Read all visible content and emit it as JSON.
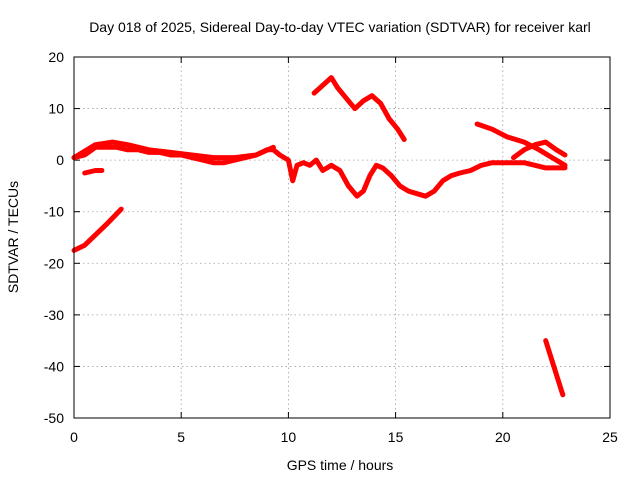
{
  "chart_data": {
    "type": "scatter",
    "title": "Day 018 of 2025, Sidereal Day-to-day VTEC variation (SDTVAR) for receiver karl",
    "xlabel": "GPS time / hours",
    "ylabel": "SDTVAR / TECUs",
    "xlim": [
      0,
      25
    ],
    "ylim": [
      -50,
      20
    ],
    "xticks": [
      "0",
      "5",
      "10",
      "15",
      "20",
      "25"
    ],
    "yticks": [
      "20",
      "10",
      "0",
      "-10",
      "-20",
      "-30",
      "-40",
      "-50"
    ],
    "grid": true,
    "marker_color": "#ff0000",
    "series": [
      {
        "name": "main-track",
        "x": [
          0,
          0.5,
          1,
          1.5,
          2,
          2.5,
          3,
          3.5,
          4,
          4.5,
          5,
          5.5,
          6,
          6.5,
          7,
          7.5,
          8,
          8.5,
          9,
          9.3,
          9.6,
          10,
          10.2,
          10.4,
          10.7,
          11,
          11.3,
          11.6,
          12,
          12.4,
          12.8,
          13.2,
          13.5,
          13.8,
          14.1,
          14.4,
          14.8,
          15.2,
          15.6,
          16,
          16.4,
          16.8,
          17.2,
          17.6,
          18,
          18.5,
          19,
          19.5,
          20,
          20.5,
          21,
          21.5,
          22,
          22.5,
          22.9
        ],
        "y": [
          0.5,
          1,
          2.5,
          2.5,
          2.5,
          2,
          2,
          1.5,
          1.5,
          1,
          1,
          0.5,
          0,
          -0.5,
          -0.5,
          0,
          0.5,
          1,
          2,
          2,
          1,
          0,
          -4,
          -1,
          -0.5,
          -1,
          0,
          -2,
          -1,
          -2,
          -5,
          -7,
          -6,
          -3,
          -1,
          -1.5,
          -3,
          -5,
          -6,
          -6.5,
          -7,
          -6,
          -4,
          -3,
          -2.5,
          -2,
          -1,
          -0.5,
          -0.5,
          -0.5,
          -0.5,
          -1,
          -1.5,
          -1.5,
          -1.5
        ]
      },
      {
        "name": "secondary-track",
        "x": [
          0,
          1,
          1.8,
          2.5,
          3.5,
          4.5,
          5.5,
          6.5,
          7.5,
          8.5,
          9.3
        ],
        "y": [
          0.5,
          3,
          3.5,
          3,
          2,
          1.5,
          1,
          0.5,
          0.5,
          1,
          2.5
        ]
      },
      {
        "name": "short-segment",
        "x": [
          0.5,
          1,
          1.3
        ],
        "y": [
          -2.5,
          -2,
          -2
        ]
      },
      {
        "name": "rising-segment",
        "x": [
          0,
          0.5,
          1,
          1.5,
          2.2
        ],
        "y": [
          -17.5,
          -16.5,
          -14.5,
          -12.5,
          -9.5
        ]
      },
      {
        "name": "arc-segment",
        "x": [
          11.2,
          11.6,
          12,
          12.3,
          12.7,
          13.1,
          13.5,
          13.9,
          14.3,
          14.7,
          15.1,
          15.4
        ],
        "y": [
          13,
          14.5,
          16,
          14,
          12,
          10,
          11.5,
          12.5,
          11,
          8,
          6,
          4
        ]
      },
      {
        "name": "late-descending",
        "x": [
          18.8,
          19.5,
          20.2,
          21,
          21.7,
          22.3,
          22.9
        ],
        "y": [
          7,
          6,
          4.5,
          3.5,
          2,
          0.5,
          -1
        ]
      },
      {
        "name": "late-wiggle",
        "x": [
          20.5,
          21,
          21.5,
          22,
          22.5,
          22.9
        ],
        "y": [
          0.5,
          2,
          3,
          3.5,
          2,
          1
        ]
      },
      {
        "name": "steep-drop",
        "x": [
          22,
          22.8
        ],
        "y": [
          -35,
          -45.5
        ]
      }
    ]
  }
}
